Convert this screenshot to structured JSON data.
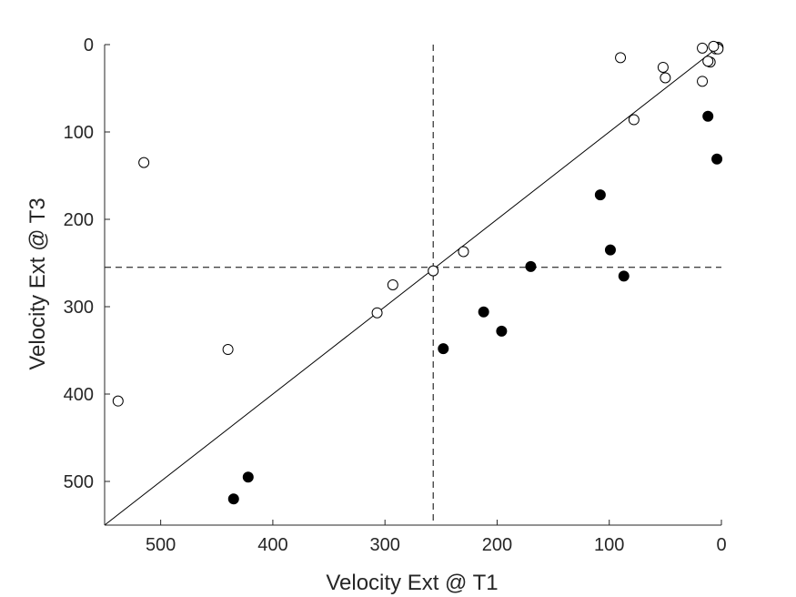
{
  "chart_data": {
    "type": "scatter",
    "xlabel": "Velocity Ext @ T1",
    "ylabel": "Velocity Ext @ T3",
    "xlim": [
      550,
      0
    ],
    "ylim": [
      550,
      0
    ],
    "x_reversed": true,
    "y_reversed": true,
    "xticks": [
      500,
      400,
      300,
      200,
      100,
      0
    ],
    "yticks": [
      0,
      100,
      200,
      300,
      400,
      500
    ],
    "grid": false,
    "legend": "none",
    "reference_lines": {
      "diagonal": "y = x",
      "vertical_dashed_x": 257,
      "horizontal_dashed_y": 255
    },
    "series": [
      {
        "marker": "open-circle",
        "color": "#000000",
        "points": [
          [
            3,
            3
          ],
          [
            4,
            4
          ],
          [
            5,
            5
          ],
          [
            3,
            5
          ],
          [
            7,
            2
          ],
          [
            17,
            4
          ],
          [
            10,
            20
          ],
          [
            12,
            19
          ],
          [
            17,
            42
          ],
          [
            52,
            26
          ],
          [
            50,
            38
          ],
          [
            90,
            15
          ],
          [
            78,
            86
          ],
          [
            515,
            135
          ],
          [
            230,
            237
          ],
          [
            257,
            259
          ],
          [
            293,
            275
          ],
          [
            307,
            307
          ],
          [
            440,
            349
          ],
          [
            538,
            408
          ]
        ]
      },
      {
        "marker": "filled-circle",
        "color": "#000000",
        "points": [
          [
            12,
            82
          ],
          [
            4,
            131
          ],
          [
            108,
            172
          ],
          [
            99,
            235
          ],
          [
            87,
            265
          ],
          [
            170,
            254
          ],
          [
            212,
            306
          ],
          [
            196,
            328
          ],
          [
            248,
            348
          ],
          [
            422,
            495
          ],
          [
            435,
            520
          ]
        ]
      }
    ]
  }
}
